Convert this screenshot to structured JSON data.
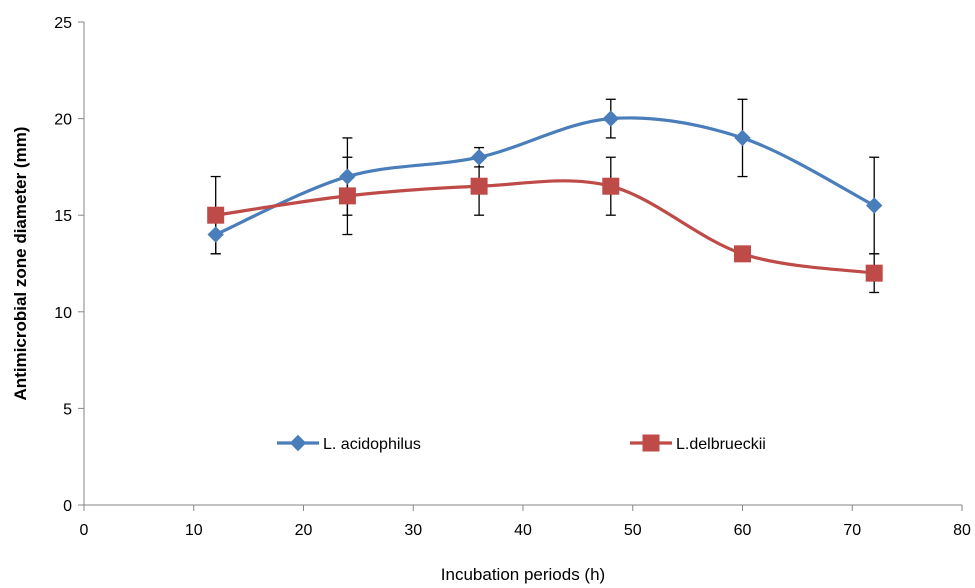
{
  "chart_data": {
    "type": "line",
    "title": "",
    "xlabel": "Incubation periods (h)",
    "ylabel": "Antimicrobial zone diameter (mm)",
    "xlim": [
      0,
      80
    ],
    "ylim": [
      0,
      25
    ],
    "xticks": [
      0,
      10,
      20,
      30,
      40,
      50,
      60,
      70,
      80
    ],
    "yticks": [
      0,
      5,
      10,
      15,
      20,
      25
    ],
    "grid": false,
    "smoothed": true,
    "legend_position": "inside-bottom",
    "series": [
      {
        "name": "L. acidophilus",
        "color": "#4a7ebb",
        "marker": "diamond",
        "x": [
          12,
          24,
          36,
          48,
          60,
          72
        ],
        "y": [
          14,
          17,
          18,
          20,
          19,
          15.5
        ],
        "error": [
          1,
          2,
          0.5,
          1,
          2,
          2.5
        ]
      },
      {
        "name": "L.delbrueckii",
        "color": "#be4b48",
        "marker": "square",
        "x": [
          12,
          24,
          36,
          48,
          60,
          72
        ],
        "y": [
          15,
          16,
          16.5,
          16.5,
          13,
          12
        ],
        "error": [
          2,
          2,
          1.5,
          1.5,
          0,
          1
        ]
      }
    ]
  }
}
